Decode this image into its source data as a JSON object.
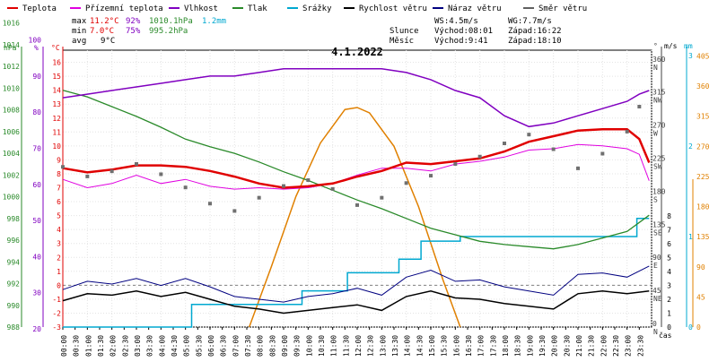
{
  "chart_data": {
    "type": "line",
    "title": "4.1.2022",
    "legend": [
      {
        "name": "Teplota",
        "color": "#e00000"
      },
      {
        "name": "Přízemní teplota",
        "color": "#e000e0"
      },
      {
        "name": "Vlhkost",
        "color": "#8000c0"
      },
      {
        "name": "Tlak",
        "color": "#2a8a2a"
      },
      {
        "name": "Srážky",
        "color": "#00a8d0"
      },
      {
        "name": "Rychlost větru",
        "color": "#000000"
      },
      {
        "name": "Náraz větru",
        "color": "#000080"
      },
      {
        "name": "Směr větru",
        "color": "#606060"
      }
    ],
    "stats": {
      "row_max": {
        "label": "max",
        "temp": "11.2°C",
        "hum": "92%",
        "press": "1010.1hPa",
        "rain": "1.2mm"
      },
      "row_min": {
        "label": "min",
        "temp": "7.0°C",
        "hum": "75%",
        "press": "995.2hPa"
      },
      "row_avg": {
        "label": "avg",
        "temp": "9°C"
      },
      "wind": {
        "ws": "WS:4.5m/s",
        "wg": "WG:7.7m/s"
      },
      "sun": {
        "label": "Slunce",
        "rise": "Východ:08:01",
        "set": "Západ:16:22"
      },
      "moon": {
        "label": "Měsíc",
        "rise": "Východ:9:41",
        "set": "Západ:18:10"
      }
    },
    "axes": {
      "hpa": {
        "unit": "hPa",
        "ticks": [
          988,
          990,
          992,
          994,
          996,
          998,
          1000,
          1002,
          1004,
          1006,
          1008,
          1010,
          1012,
          1014,
          1016
        ]
      },
      "pct": {
        "unit": "%",
        "ticks": [
          20,
          30,
          40,
          50,
          60,
          70,
          80,
          90,
          100
        ]
      },
      "c": {
        "unit": "°C",
        "ticks": [
          -3,
          -2,
          -1,
          0,
          1,
          2,
          3,
          4,
          5,
          6,
          7,
          8,
          9,
          10,
          11,
          12,
          13,
          14,
          15,
          16
        ]
      },
      "deg": {
        "unit": "°",
        "ticks": [
          {
            "v": "0",
            "l": "N"
          },
          {
            "v": "45",
            "l": "NE"
          },
          {
            "v": "90",
            "l": "E"
          },
          {
            "v": "135",
            "l": "SE"
          },
          {
            "v": "180",
            "l": "S"
          },
          {
            "v": "225",
            "l": "SW"
          },
          {
            "v": "270",
            "l": "W"
          },
          {
            "v": "315",
            "l": "NW"
          },
          {
            "v": "360",
            "l": "N"
          }
        ]
      },
      "ms": {
        "unit": "m/s",
        "ticks": [
          0,
          1,
          2,
          3,
          4,
          5,
          6,
          7,
          8
        ]
      },
      "mm": {
        "unit": "mm",
        "ticks": [
          0,
          1,
          2,
          3
        ]
      },
      "sol": {
        "ticks": [
          0,
          45,
          90,
          135,
          180,
          225,
          270,
          315,
          360,
          405
        ]
      },
      "time_label": "čas",
      "xticks": [
        "00:00",
        "00:30",
        "01:00",
        "01:30",
        "02:00",
        "02:30",
        "03:00",
        "03:30",
        "04:00",
        "04:30",
        "05:00",
        "05:30",
        "06:00",
        "06:30",
        "07:00",
        "07:30",
        "08:00",
        "08:30",
        "09:00",
        "09:30",
        "10:00",
        "10:30",
        "11:00",
        "11:30",
        "12:00",
        "12:30",
        "13:00",
        "13:30",
        "14:00",
        "14:30",
        "15:00",
        "15:30",
        "16:00",
        "16:30",
        "17:00",
        "17:30",
        "18:00",
        "18:30",
        "19:00",
        "19:30",
        "20:00",
        "20:30",
        "21:00",
        "21:30",
        "22:00",
        "22:30",
        "23:00",
        "23:30"
      ]
    },
    "series": {
      "temp_c": {
        "x": [
          0,
          1,
          2,
          3,
          4,
          5,
          6,
          7,
          8,
          9,
          10,
          11,
          12,
          13,
          14,
          15,
          16,
          17,
          18,
          19,
          20,
          21,
          22,
          23,
          23.5,
          23.9
        ],
        "y": [
          8.4,
          8.1,
          8.3,
          8.6,
          8.6,
          8.5,
          8.2,
          7.8,
          7.3,
          7.0,
          7.1,
          7.3,
          7.8,
          8.2,
          8.8,
          8.7,
          8.9,
          9.1,
          9.6,
          10.3,
          10.7,
          11.1,
          11.2,
          11.2,
          10.5,
          8.8
        ]
      },
      "ground_c": {
        "x": [
          0,
          1,
          2,
          3,
          4,
          5,
          6,
          7,
          8,
          9,
          10,
          11,
          12,
          13,
          14,
          15,
          16,
          17,
          18,
          19,
          20,
          21,
          22,
          23,
          23.5,
          23.9
        ],
        "y": [
          7.6,
          7.0,
          7.3,
          7.9,
          7.3,
          7.6,
          7.1,
          6.9,
          7.0,
          6.9,
          7.0,
          7.3,
          7.9,
          8.4,
          8.4,
          8.2,
          8.7,
          8.9,
          9.2,
          9.7,
          9.8,
          10.1,
          10.0,
          9.8,
          9.4,
          7.5
        ]
      },
      "humidity_pct": {
        "x": [
          0,
          1,
          2,
          3,
          4,
          5,
          6,
          7,
          8,
          9,
          10,
          11,
          12,
          13,
          14,
          15,
          16,
          17,
          18,
          19,
          20,
          21,
          22,
          23,
          23.5,
          23.9
        ],
        "y": [
          84,
          85,
          86,
          87,
          88,
          89,
          90,
          90,
          91,
          92,
          92,
          92,
          92,
          92,
          91,
          89,
          86,
          84,
          79,
          76,
          77,
          79,
          81,
          83,
          85,
          86
        ]
      },
      "pressure_hpa": {
        "x": [
          0,
          1,
          2,
          3,
          4,
          5,
          6,
          7,
          8,
          9,
          10,
          11,
          12,
          13,
          14,
          15,
          16,
          17,
          18,
          19,
          20,
          21,
          22,
          23,
          23.9
        ],
        "y": [
          1009.8,
          1009.2,
          1008.3,
          1007.4,
          1006.4,
          1005.3,
          1004.6,
          1004.0,
          1003.2,
          1002.3,
          1001.5,
          1000.6,
          999.7,
          998.9,
          998.0,
          997.1,
          996.5,
          995.9,
          995.6,
          995.4,
          995.2,
          995.6,
          996.2,
          996.8,
          998.3
        ]
      },
      "rain_mm": {
        "x": [
          0,
          5.25,
          5.25,
          9.75,
          9.75,
          11.6,
          11.6,
          13.7,
          13.7,
          14.6,
          14.6,
          16.2,
          16.2,
          23.4,
          23.4,
          23.9
        ],
        "y": [
          0,
          0,
          0.25,
          0.25,
          0.4,
          0.4,
          0.6,
          0.6,
          0.75,
          0.75,
          0.95,
          0.95,
          1.0,
          1.0,
          1.2,
          1.2
        ]
      },
      "solar": {
        "x": [
          7.6,
          8.5,
          9.5,
          10.5,
          11.5,
          12.0,
          12.5,
          13.5,
          14.5,
          15.5,
          16.2
        ],
        "y": [
          0,
          90,
          195,
          275,
          325,
          328,
          320,
          270,
          180,
          70,
          0
        ]
      },
      "wind_speed_ms": {
        "x": [
          0,
          1,
          2,
          3,
          4,
          5,
          6,
          7,
          8,
          9,
          10,
          11,
          12,
          13,
          14,
          15,
          16,
          17,
          18,
          19,
          20,
          21,
          22,
          23,
          23.9
        ],
        "y": [
          1.9,
          2.4,
          2.3,
          2.6,
          2.2,
          2.5,
          2.0,
          1.5,
          1.3,
          1.0,
          1.2,
          1.4,
          1.6,
          1.2,
          2.2,
          2.6,
          2.1,
          2.0,
          1.7,
          1.5,
          1.3,
          2.4,
          2.6,
          2.4,
          2.6
        ]
      },
      "wind_gust_ms": {
        "x": [
          0,
          1,
          2,
          3,
          4,
          5,
          6,
          7,
          8,
          9,
          10,
          11,
          12,
          13,
          14,
          15,
          16,
          17,
          18,
          19,
          20,
          21,
          22,
          23,
          23.9
        ],
        "y": [
          2.7,
          3.3,
          3.1,
          3.5,
          3.0,
          3.5,
          2.9,
          2.2,
          2.0,
          1.8,
          2.2,
          2.4,
          2.8,
          2.3,
          3.6,
          4.1,
          3.3,
          3.4,
          2.9,
          2.6,
          2.3,
          3.8,
          3.9,
          3.6,
          4.4
        ]
      },
      "wind_dir_deg": {
        "x": [
          0,
          1,
          2,
          3,
          4,
          5,
          6,
          7,
          8,
          9,
          10,
          11,
          12,
          13,
          14,
          15,
          16,
          17,
          18,
          19,
          20,
          21,
          22,
          23,
          23.5
        ],
        "y": [
          218,
          205,
          212,
          222,
          208,
          190,
          168,
          158,
          176,
          192,
          200,
          188,
          166,
          176,
          196,
          206,
          222,
          232,
          250,
          262,
          242,
          216,
          236,
          266,
          300
        ]
      }
    },
    "x_range": [
      0,
      24
    ]
  }
}
